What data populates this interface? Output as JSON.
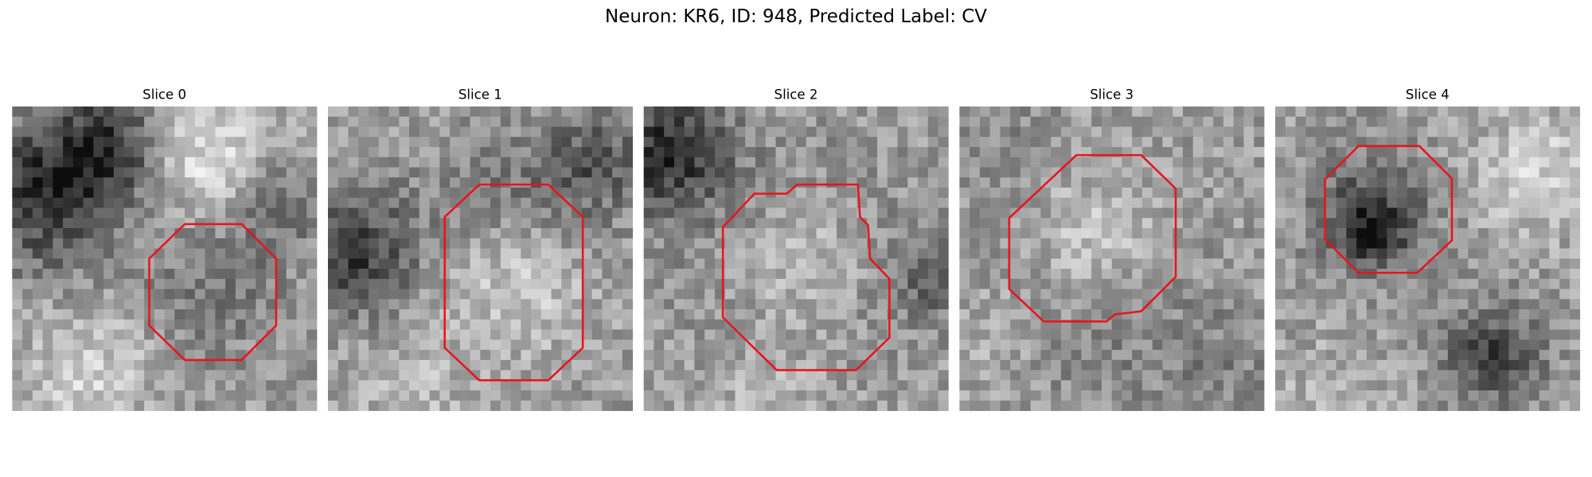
{
  "title": "Neuron: KR6, ID: 948, Predicted Label: CV",
  "panels": [
    {
      "title": "Slice 0"
    },
    {
      "title": "Slice 1"
    },
    {
      "title": "Slice 2"
    },
    {
      "title": "Slice 3"
    },
    {
      "title": "Slice 4"
    }
  ]
}
